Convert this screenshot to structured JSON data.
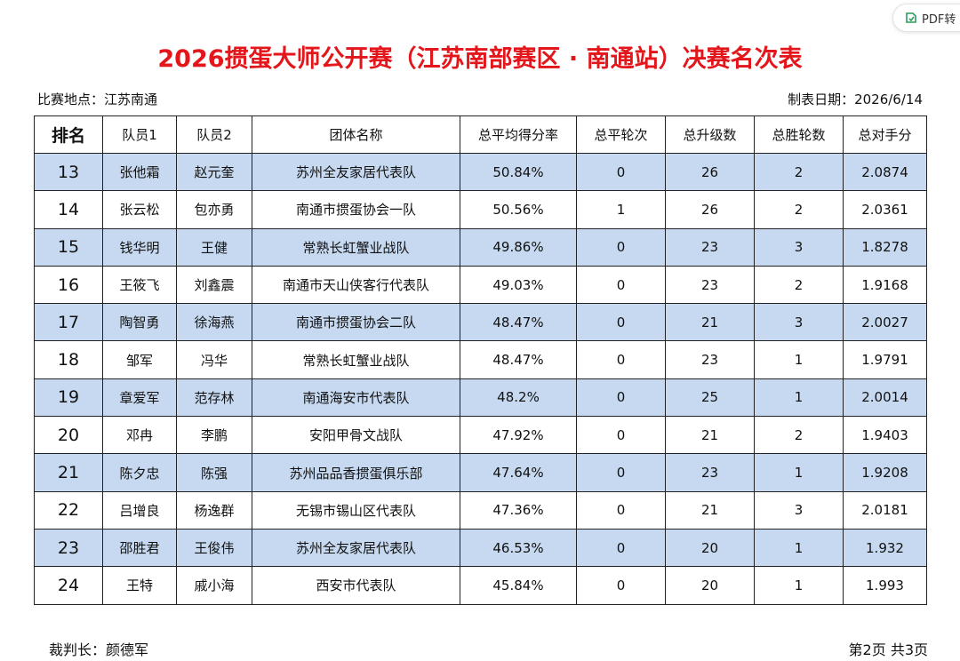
{
  "toolbar": {
    "button": "PDF转"
  },
  "header": {
    "title": "2026掼蛋大师公开赛（江苏南部赛区 · 南通站）决赛名次表",
    "location": "比赛地点：江苏南通",
    "date": "制表日期：2026/6/14"
  },
  "table": {
    "columns": [
      "排名",
      "队员1",
      "队员2",
      "团体名称",
      "总平均得分率",
      "总平轮次",
      "总升级数",
      "总胜轮数",
      "总对手分"
    ],
    "rows": [
      [
        "13",
        "张他霜",
        "赵元奎",
        "苏州全友家居代表队",
        "50.84%",
        "0",
        "26",
        "2",
        "2.0874"
      ],
      [
        "14",
        "张云松",
        "包亦勇",
        "南通市掼蛋协会一队",
        "50.56%",
        "1",
        "26",
        "2",
        "2.0361"
      ],
      [
        "15",
        "钱华明",
        "王健",
        "常熟长虹蟹业战队",
        "49.86%",
        "0",
        "23",
        "3",
        "1.8278"
      ],
      [
        "16",
        "王筱飞",
        "刘鑫震",
        "南通市天山侠客行代表队",
        "49.03%",
        "0",
        "23",
        "2",
        "1.9168"
      ],
      [
        "17",
        "陶智勇",
        "徐海燕",
        "南通市掼蛋协会二队",
        "48.47%",
        "0",
        "21",
        "3",
        "2.0027"
      ],
      [
        "18",
        "邹军",
        "冯华",
        "常熟长虹蟹业战队",
        "48.47%",
        "0",
        "23",
        "1",
        "1.9791"
      ],
      [
        "19",
        "章爱军",
        "范存林",
        "南通海安市代表队",
        "48.2%",
        "0",
        "25",
        "1",
        "2.0014"
      ],
      [
        "20",
        "邓冉",
        "李鹏",
        "安阳甲骨文战队",
        "47.92%",
        "0",
        "21",
        "2",
        "1.9403"
      ],
      [
        "21",
        "陈夕忠",
        "陈强",
        "苏州品品香掼蛋俱乐部",
        "47.64%",
        "0",
        "23",
        "1",
        "1.9208"
      ],
      [
        "22",
        "吕增良",
        "杨逸群",
        "无锡市锡山区代表队",
        "47.36%",
        "0",
        "21",
        "3",
        "2.0181"
      ],
      [
        "23",
        "邵胜君",
        "王俊伟",
        "苏州全友家居代表队",
        "46.53%",
        "0",
        "20",
        "1",
        "1.932"
      ],
      [
        "24",
        "王特",
        "戚小海",
        "西安市代表队",
        "45.84%",
        "0",
        "20",
        "1",
        "1.993"
      ]
    ]
  },
  "footer": {
    "referee": "裁判长：颜德军",
    "page": "第2页 共3页"
  }
}
